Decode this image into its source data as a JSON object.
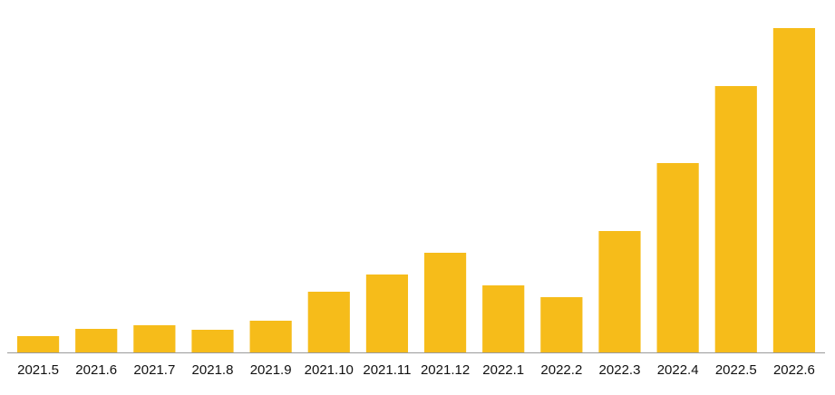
{
  "chart_data": {
    "type": "bar",
    "categories": [
      "2021.5",
      "2021.6",
      "2021.7",
      "2021.8",
      "2021.9",
      "2021.10",
      "2021.11",
      "2021.12",
      "2022.1",
      "2022.2",
      "2022.3",
      "2022.4",
      "2022.5",
      "2022.6"
    ],
    "values": [
      18,
      26,
      30,
      25,
      35,
      67,
      86,
      110,
      74,
      61,
      134,
      209,
      294,
      358
    ],
    "color": "#f6bc1a",
    "ylim": [
      0,
      360
    ]
  }
}
